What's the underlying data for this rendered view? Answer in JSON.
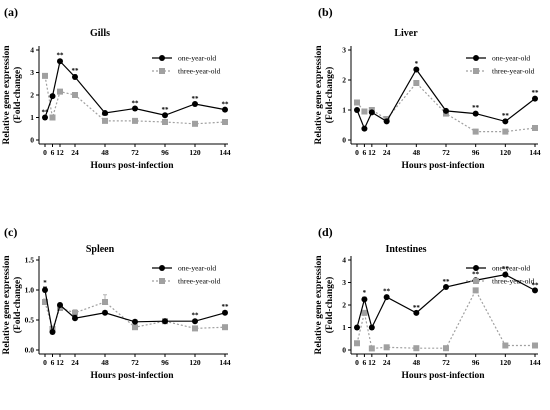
{
  "chart_data": [
    {
      "type": "line",
      "panel_label": "(a)",
      "title": "Gills",
      "xlabel": "Hours post-infection",
      "ylabel": [
        "Relative gene expression",
        "(Fold-change)"
      ],
      "x": [
        0,
        6,
        12,
        24,
        48,
        72,
        96,
        120,
        144
      ],
      "xticks": [
        "0",
        "6",
        "12",
        "24",
        "48",
        "72",
        "96",
        "120",
        "144"
      ],
      "ylim": [
        0,
        4
      ],
      "yticks": [
        "0",
        "1",
        "2",
        "3",
        "4"
      ],
      "legend": "top-right",
      "series": [
        {
          "name": "one-year-old",
          "style": "solid",
          "marker": "circle",
          "color": "#000000",
          "values": [
            1.0,
            1.95,
            3.5,
            2.8,
            1.2,
            1.4,
            1.1,
            1.6,
            1.35
          ],
          "errors": [
            0.05,
            0.05,
            0.08,
            0.1,
            0.05,
            0.05,
            0.05,
            0.05,
            0.05
          ],
          "marks": [
            "**",
            "",
            "**",
            "**",
            "",
            "**",
            "**",
            "**",
            "**"
          ]
        },
        {
          "name": "three-year-old",
          "style": "dotted",
          "marker": "square",
          "color": "#a0a0a0",
          "values": [
            2.85,
            1.0,
            2.15,
            2.0,
            0.85,
            0.85,
            0.8,
            0.72,
            0.8
          ],
          "errors": [
            0.05,
            0.05,
            0.05,
            0.05,
            0.03,
            0.03,
            0.03,
            0.03,
            0.03
          ],
          "marks": [
            "",
            "",
            "",
            "",
            "**",
            "",
            "",
            "",
            ""
          ]
        }
      ]
    },
    {
      "type": "line",
      "panel_label": "(b)",
      "title": "Liver",
      "xlabel": "Hours post-infection",
      "ylabel": [
        "Relative gene expression",
        "(Fold-change)"
      ],
      "x": [
        0,
        6,
        12,
        24,
        48,
        72,
        96,
        120,
        144
      ],
      "xticks": [
        "0",
        "6",
        "12",
        "24",
        "48",
        "72",
        "96",
        "120",
        "144"
      ],
      "ylim": [
        0,
        3
      ],
      "yticks": [
        "0",
        "1",
        "2",
        "3"
      ],
      "legend": "top-right",
      "series": [
        {
          "name": "one-year-old",
          "style": "solid",
          "marker": "circle",
          "color": "#000000",
          "values": [
            1.0,
            0.38,
            0.92,
            0.62,
            2.35,
            0.97,
            0.88,
            0.62,
            1.38
          ],
          "errors": [
            0.05,
            0.05,
            0.05,
            0.05,
            0.05,
            0.05,
            0.05,
            0.05,
            0.05
          ],
          "marks": [
            "",
            "",
            "",
            "",
            "*",
            "",
            "**",
            "**",
            "**"
          ]
        },
        {
          "name": "three-year-old",
          "style": "dotted",
          "marker": "square",
          "color": "#a0a0a0",
          "values": [
            1.25,
            0.95,
            1.0,
            0.7,
            1.9,
            0.88,
            0.28,
            0.28,
            0.4
          ],
          "errors": [
            0.08,
            0.05,
            0.05,
            0.05,
            0.05,
            0.05,
            0.03,
            0.03,
            0.03
          ],
          "marks": [
            "",
            "",
            "",
            "",
            "",
            "",
            "",
            "",
            ""
          ]
        }
      ]
    },
    {
      "type": "line",
      "panel_label": "(c)",
      "title": "Spleen",
      "xlabel": "Hours post-infection",
      "ylabel": [
        "Relative gene expression",
        "(Fold-change)"
      ],
      "x": [
        0,
        6,
        12,
        24,
        48,
        72,
        96,
        120,
        144
      ],
      "xticks": [
        "0",
        "6",
        "12",
        "24",
        "48",
        "72",
        "96",
        "120",
        "144"
      ],
      "ylim": [
        0,
        1.5
      ],
      "yticks": [
        "0.0",
        "0.5",
        "1.0",
        "1.5"
      ],
      "legend": "top-right",
      "series": [
        {
          "name": "one-year-old",
          "style": "solid",
          "marker": "circle",
          "color": "#000000",
          "values": [
            1.0,
            0.3,
            0.75,
            0.53,
            0.62,
            0.47,
            0.48,
            0.48,
            0.62
          ],
          "errors": [
            0.05,
            0.03,
            0.03,
            0.05,
            0.03,
            0.03,
            0.03,
            0.03,
            0.03
          ],
          "marks": [
            "*",
            "",
            "",
            "",
            "",
            "",
            "",
            "**",
            "**"
          ]
        },
        {
          "name": "three-year-old",
          "style": "dotted",
          "marker": "square",
          "color": "#a0a0a0",
          "values": [
            0.8,
            0.35,
            0.7,
            0.62,
            0.8,
            0.38,
            0.48,
            0.36,
            0.38
          ],
          "errors": [
            0.05,
            0.05,
            0.05,
            0.05,
            0.12,
            0.03,
            0.03,
            0.03,
            0.03
          ],
          "marks": [
            "",
            "",
            "",
            "",
            "",
            "",
            "",
            "",
            ""
          ]
        }
      ]
    },
    {
      "type": "line",
      "panel_label": "(d)",
      "title": "Intestines",
      "xlabel": "Hours post-infection",
      "ylabel": [
        "Relative gene expression",
        "(Fold-change)"
      ],
      "x": [
        0,
        6,
        12,
        24,
        48,
        72,
        96,
        120,
        144
      ],
      "xticks": [
        "0",
        "6",
        "12",
        "24",
        "48",
        "72",
        "96",
        "120",
        "144"
      ],
      "ylim": [
        0,
        4
      ],
      "yticks": [
        "0",
        "1",
        "2",
        "3",
        "4"
      ],
      "legend": "top-right",
      "series": [
        {
          "name": "one-year-old",
          "style": "solid",
          "marker": "circle",
          "color": "#000000",
          "values": [
            1.0,
            2.25,
            1.0,
            2.35,
            1.65,
            2.8,
            3.1,
            3.35,
            2.65
          ],
          "errors": [
            0.05,
            0.1,
            0.05,
            0.08,
            0.05,
            0.05,
            0.08,
            0.08,
            0.05
          ],
          "marks": [
            "",
            "*",
            "",
            "**",
            "**",
            "**",
            "**",
            "**",
            "**"
          ]
        },
        {
          "name": "three-year-old",
          "style": "dotted",
          "marker": "square",
          "color": "#a0a0a0",
          "values": [
            0.3,
            1.65,
            0.07,
            0.12,
            0.08,
            0.08,
            2.65,
            0.2,
            0.2
          ],
          "errors": [
            0.03,
            0.05,
            0.02,
            0.02,
            0.02,
            0.02,
            0.05,
            0.02,
            0.02
          ],
          "marks": [
            "",
            "",
            "",
            "",
            "",
            "",
            "",
            "",
            ""
          ]
        }
      ]
    }
  ]
}
